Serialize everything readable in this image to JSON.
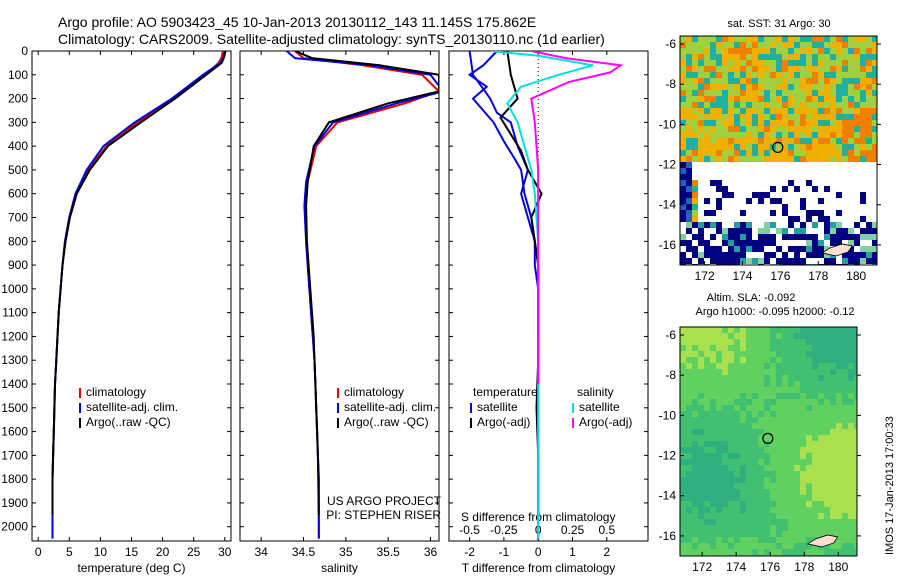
{
  "header": {
    "line1": "Argo profile: AO 5903423_45 10-Jan-2013 20130112_143 11.145S 175.862E",
    "line2": "Climatology: CARS2009. Satellite-adjusted climatology: synTS_20130110.nc (1d earlier)"
  },
  "colors": {
    "clim": "#e00000",
    "sat": "#0000e0",
    "argo": "#000000",
    "sal_sat": "#00e0e0",
    "sal_argo": "#ff00ff"
  },
  "chart_data": [
    {
      "type": "line",
      "name": "temperature",
      "xlabel": "temperature (deg C)",
      "ylabel": "",
      "xlim": [
        -1,
        31
      ],
      "ylim": [
        2060,
        0
      ],
      "xticks": [
        0,
        5,
        10,
        15,
        20,
        25,
        30
      ],
      "yticks": [
        0,
        100,
        200,
        300,
        400,
        500,
        600,
        700,
        800,
        900,
        1000,
        1100,
        1200,
        1300,
        1400,
        1500,
        1600,
        1700,
        1800,
        1900,
        2000
      ],
      "legend": [
        "climatology",
        "satellite-adj. clim.",
        "Argo(..raw -QC)"
      ],
      "series": [
        {
          "key": "clim",
          "x": [
            29.7,
            29.5,
            29,
            27,
            22,
            16,
            11,
            8,
            6,
            5,
            4.3,
            3.9,
            3.6,
            3.3,
            3.1,
            2.9,
            2.7,
            2.6,
            2.5,
            2.4,
            2.3,
            2.3,
            2.3
          ],
          "y": [
            0,
            25,
            50,
            100,
            200,
            300,
            400,
            500,
            600,
            700,
            800,
            900,
            1000,
            1100,
            1200,
            1300,
            1400,
            1500,
            1600,
            1700,
            1800,
            1900,
            2050
          ]
        },
        {
          "key": "sat",
          "x": [
            30,
            29.8,
            29.3,
            26.5,
            21.5,
            15.5,
            10.5,
            7.8,
            6,
            5,
            4.3,
            3.9,
            3.6,
            3.3,
            3.1,
            2.9,
            2.7,
            2.6,
            2.5,
            2.4,
            2.3,
            2.3,
            2.3
          ],
          "y": [
            0,
            25,
            50,
            100,
            200,
            300,
            400,
            500,
            600,
            700,
            800,
            900,
            1000,
            1100,
            1200,
            1300,
            1400,
            1500,
            1600,
            1700,
            1800,
            1900,
            2050
          ]
        },
        {
          "key": "argo",
          "x": [
            30.1,
            29.9,
            29.5,
            27,
            22,
            16.5,
            11.2,
            8.3,
            6.2,
            5.1,
            4.4,
            3.9,
            3.6,
            3.3,
            3.1,
            2.9,
            2.7,
            2.6,
            2.5,
            2.4,
            2.3,
            2.3
          ],
          "y": [
            0,
            25,
            50,
            100,
            200,
            300,
            400,
            500,
            600,
            700,
            800,
            900,
            1000,
            1100,
            1200,
            1300,
            1400,
            1500,
            1600,
            1700,
            1800,
            1950
          ]
        }
      ]
    },
    {
      "type": "line",
      "name": "salinity",
      "xlabel": "salinity",
      "xlim": [
        33.75,
        36.1
      ],
      "ylim": [
        2060,
        0
      ],
      "xticks": [
        34,
        34.5,
        35,
        35.5,
        36
      ],
      "legend": [
        "climatology",
        "satellite-adj. clim.",
        "Argo(..raw -QC)"
      ],
      "annotation": [
        "US ARGO PROJECT",
        "PI: STEPHEN RISER"
      ],
      "series": [
        {
          "key": "clim",
          "x": [
            34.4,
            34.5,
            35.2,
            35.9,
            36.1,
            35.7,
            34.9,
            34.65,
            34.55,
            34.52,
            34.53,
            34.55,
            34.57,
            34.59,
            34.61,
            34.63,
            34.64,
            34.65,
            34.66,
            34.67,
            34.68,
            34.68
          ],
          "y": [
            0,
            30,
            60,
            100,
            170,
            220,
            300,
            400,
            550,
            650,
            800,
            900,
            1000,
            1100,
            1200,
            1300,
            1400,
            1500,
            1600,
            1700,
            1800,
            2050
          ]
        },
        {
          "key": "sat",
          "x": [
            34.3,
            34.4,
            35.3,
            36,
            36.15,
            35.6,
            34.85,
            34.63,
            34.53,
            34.51,
            34.53,
            34.55,
            34.57,
            34.59,
            34.61,
            34.63,
            34.64,
            34.65,
            34.66,
            34.67,
            34.68,
            34.68
          ],
          "y": [
            0,
            30,
            60,
            100,
            170,
            220,
            300,
            400,
            550,
            650,
            800,
            900,
            1000,
            1100,
            1200,
            1300,
            1400,
            1500,
            1600,
            1700,
            1800,
            2050
          ]
        },
        {
          "key": "argo",
          "x": [
            34.4,
            34.6,
            35.4,
            36.1,
            36.1,
            35.5,
            34.8,
            34.62,
            34.55,
            34.53,
            34.54,
            34.56,
            34.58,
            34.6,
            34.62,
            34.63,
            34.64,
            34.65,
            34.66,
            34.67,
            34.68
          ],
          "y": [
            0,
            30,
            60,
            100,
            170,
            220,
            300,
            400,
            550,
            650,
            800,
            900,
            1000,
            1100,
            1200,
            1300,
            1400,
            1500,
            1600,
            1700,
            1950
          ]
        }
      ]
    },
    {
      "type": "line",
      "name": "difference",
      "xlabel": "T difference from climatology",
      "xlabel_top": "S difference from climatology",
      "xlim": [
        -2.6,
        3.2
      ],
      "ylim": [
        2060,
        0
      ],
      "xticks": [
        -2,
        -1,
        0,
        1,
        2
      ],
      "xticks_s": [
        {
          "v": -2,
          "t": "-0.5"
        },
        {
          "v": -1,
          "t": "-0.25"
        },
        {
          "v": 0,
          "t": "0"
        },
        {
          "v": 1,
          "t": "0.25"
        },
        {
          "v": 2,
          "t": "0.5"
        }
      ],
      "legend_t": {
        "title": "temperature",
        "items": [
          "satellite",
          "Argo(-adj)"
        ]
      },
      "legend_s": {
        "title": "salinity",
        "items": [
          "satellite",
          "Argo(-adj)"
        ]
      },
      "series": [
        {
          "key": "sat",
          "x": [
            -1.2,
            -1.6,
            -2.0,
            -1.5,
            -1.9,
            -1.3,
            -1.0,
            -0.7,
            -0.5,
            -0.4,
            -0.2,
            -0.1,
            -0.1,
            0.0,
            0.0,
            0.0,
            0.0,
            0.0,
            0.0,
            0.0,
            0.0,
            0.0
          ],
          "y": [
            0,
            60,
            100,
            150,
            200,
            300,
            380,
            450,
            500,
            600,
            700,
            800,
            900,
            1000,
            1100,
            1200,
            1300,
            1400,
            1500,
            1700,
            1900,
            2050
          ]
        },
        {
          "key": "sat",
          "x": [
            -2.0,
            -1.9,
            -1.4,
            -1.2,
            -0.8,
            -0.6,
            -0.3,
            -0.5,
            -0.3,
            -0.1,
            0.0,
            0.0,
            0.0
          ],
          "y": [
            0,
            100,
            200,
            260,
            300,
            400,
            500,
            600,
            700,
            800,
            900,
            1000,
            1200
          ]
        },
        {
          "key": "argo",
          "x": [
            -0.9,
            -0.8,
            -0.6,
            -1.1,
            -0.8,
            -0.5,
            -0.3,
            0.1,
            -0.2,
            -0.1,
            0.0,
            0.0,
            0.0,
            0.0,
            -0.05,
            0.0,
            0.0
          ],
          "y": [
            0,
            100,
            200,
            280,
            350,
            420,
            500,
            600,
            700,
            800,
            900,
            1000,
            1100,
            1300,
            1500,
            1700,
            1950
          ]
        },
        {
          "key": "sal_sat",
          "x": [
            -1.4,
            0.0,
            1.6,
            0.6,
            -0.5,
            -0.9,
            -0.6,
            -0.4,
            -0.2,
            -0.1,
            0.0,
            0.0,
            0.0,
            0.0
          ],
          "y": [
            0,
            20,
            60,
            100,
            150,
            220,
            300,
            400,
            500,
            600,
            800,
            1200,
            1600,
            2050
          ]
        },
        {
          "key": "sal_argo",
          "x": [
            -0.2,
            0.8,
            2.4,
            2.1,
            0.9,
            -0.2,
            -0.1,
            0.0,
            0.0,
            0.0
          ],
          "y": [
            0,
            30,
            60,
            90,
            130,
            200,
            300,
            500,
            800,
            1400
          ]
        }
      ]
    }
  ],
  "maps": {
    "top": {
      "title": "sat. SST: 31  Argo: 30",
      "xticks": [
        172,
        174,
        176,
        178,
        180
      ],
      "yticks": [
        -6,
        -8,
        -10,
        -12,
        -14,
        -16
      ],
      "xlim": [
        170.7,
        181.1
      ],
      "ylim": [
        -17,
        -5.6
      ]
    },
    "bottom": {
      "title1": "Altim. SLA: -0.092",
      "title2": "Argo h1000: -0.095  h2000: -0.12",
      "xticks": [
        172,
        174,
        176,
        178,
        180
      ],
      "yticks": [
        -6,
        -8,
        -10,
        -12,
        -14,
        -16
      ],
      "xlim": [
        170.7,
        181.1
      ],
      "ylim": [
        -17,
        -5.6
      ]
    },
    "argo_pos": {
      "lon": 175.862,
      "lat": -11.145
    }
  },
  "side_text": "IMOS 17-Jan-2013 17:00:33"
}
